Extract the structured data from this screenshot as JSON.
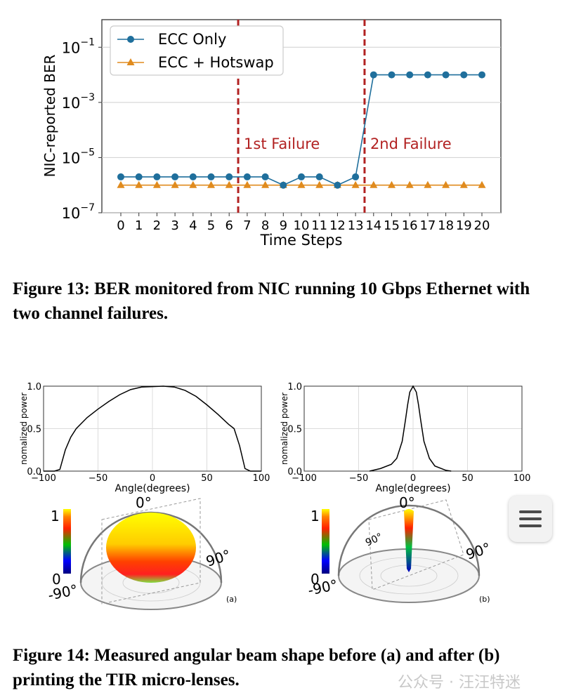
{
  "figure13": {
    "caption": "Figure 13: BER monitored from NIC running 10 Gbps Ethernet with two channel failures.",
    "chart_data": {
      "type": "line",
      "xlabel": "Time Steps",
      "ylabel": "NIC-reported BER",
      "y_scale": "log",
      "ylim_exponents": [
        -7,
        0
      ],
      "y_ticks": [
        {
          "base": "10",
          "exp": "−1"
        },
        {
          "base": "10",
          "exp": "−3"
        },
        {
          "base": "10",
          "exp": "−5"
        },
        {
          "base": "10",
          "exp": "−7"
        }
      ],
      "x": [
        0,
        1,
        2,
        3,
        4,
        5,
        6,
        7,
        8,
        9,
        10,
        11,
        12,
        13,
        14,
        15,
        16,
        17,
        18,
        19,
        20
      ],
      "x_tick_labels": [
        "0",
        "1",
        "2",
        "3",
        "4",
        "5",
        "6",
        "7",
        "8",
        "9",
        "10",
        "11",
        "12",
        "13",
        "14",
        "15",
        "16",
        "17",
        "18",
        "19",
        "20"
      ],
      "series": [
        {
          "name": "ECC Only",
          "color": "#1f6f9c",
          "marker": "circle",
          "log10_values": [
            -5.7,
            -5.7,
            -5.7,
            -5.7,
            -5.7,
            -5.7,
            -5.7,
            -5.7,
            -5.7,
            -6,
            -5.7,
            -5.7,
            -6,
            -5.7,
            -2,
            -2,
            -2,
            -2,
            -2,
            -2,
            -2
          ]
        },
        {
          "name": "ECC + Hotswap",
          "color": "#e08b1e",
          "marker": "triangle",
          "log10_values": [
            -6,
            -6,
            -6,
            -6,
            -6,
            -6,
            -6,
            -6,
            -6,
            -6,
            -6,
            -6,
            -6,
            -6,
            -6,
            -6,
            -6,
            -6,
            -6,
            -6,
            -6
          ]
        }
      ],
      "annotations": [
        {
          "label": "1st Failure",
          "x": 6.5,
          "color": "#b22222"
        },
        {
          "label": "2nd Failure",
          "x": 13.5,
          "color": "#b22222"
        }
      ]
    }
  },
  "figure14": {
    "caption": "Figure 14: Measured angular beam shape before (a) and after (b) printing the TIR micro-lenses.",
    "chart_data": [
      {
        "type": "line",
        "panel": "(a)",
        "xlabel": "Angle(degrees)",
        "ylabel": "nomalized power",
        "xlim": [
          -100,
          100
        ],
        "ylim": [
          0,
          1
        ],
        "x_ticks": [
          "−100",
          "−50",
          "0",
          "50",
          "100"
        ],
        "y_ticks": [
          "0.0",
          "0.5",
          "1.0"
        ],
        "x": [
          -100,
          -90,
          -85,
          -80,
          -75,
          -70,
          -60,
          -50,
          -40,
          -30,
          -20,
          -10,
          0,
          10,
          20,
          30,
          40,
          50,
          60,
          70,
          75,
          80,
          85,
          90,
          100
        ],
        "y": [
          0,
          0,
          0.02,
          0.25,
          0.4,
          0.5,
          0.63,
          0.73,
          0.82,
          0.9,
          0.96,
          0.99,
          0.995,
          1,
          0.99,
          0.95,
          0.88,
          0.78,
          0.67,
          0.55,
          0.5,
          0.3,
          0.03,
          0,
          0
        ]
      },
      {
        "type": "line",
        "panel": "(b)",
        "xlabel": "Angle(degrees)",
        "ylabel": "nomalized power",
        "xlim": [
          -100,
          100
        ],
        "ylim": [
          0,
          1
        ],
        "x_ticks": [
          "−100",
          "−50",
          "0",
          "50",
          "100"
        ],
        "y_ticks": [
          "0.0",
          "0.5",
          "1.0"
        ],
        "x": [
          -40,
          -30,
          -20,
          -15,
          -10,
          -7,
          -5,
          -3,
          0,
          3,
          5,
          7,
          10,
          15,
          20,
          30,
          35
        ],
        "y": [
          0,
          0.03,
          0.08,
          0.15,
          0.35,
          0.6,
          0.78,
          0.93,
          1,
          0.93,
          0.78,
          0.6,
          0.35,
          0.15,
          0.06,
          0.01,
          0
        ]
      }
    ],
    "polar_a": {
      "scale_top": "1",
      "scale_bottom": "0",
      "angle_top": "0°",
      "angle_right": "90°",
      "angle_left": "-90°",
      "panel": "(a)"
    },
    "polar_b": {
      "scale_top": "1",
      "scale_bottom": "0",
      "angle_top": "0°",
      "angle_right": "90°",
      "angle_mid": "90°",
      "angle_left": "-90°",
      "panel": "(b)"
    }
  },
  "watermark": "公众号 · 汪汪特迷"
}
